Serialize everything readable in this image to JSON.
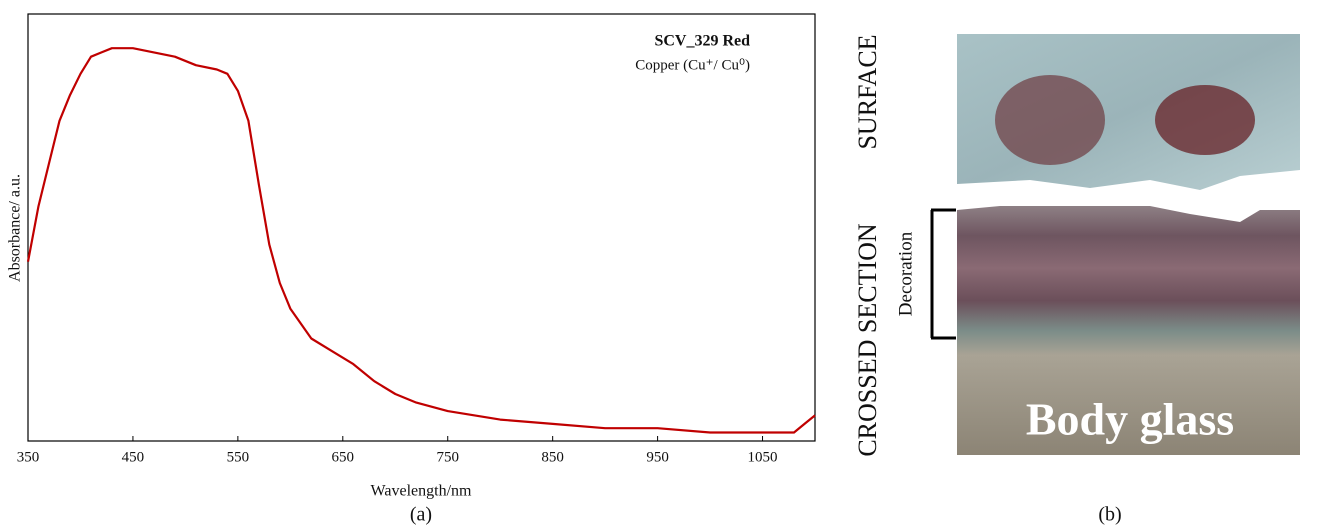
{
  "chart_data": {
    "type": "line",
    "panel_label": "(a)",
    "series_title": "SCV_329 Red",
    "series_subtitle": "Copper (Cu⁺/ Cu⁰)",
    "xlabel": "Wavelength/nm",
    "ylabel": "Absorbance/ a.u.",
    "x": [
      350,
      360,
      370,
      380,
      390,
      400,
      410,
      420,
      430,
      440,
      450,
      470,
      490,
      510,
      530,
      540,
      550,
      560,
      570,
      580,
      590,
      600,
      620,
      640,
      660,
      680,
      700,
      720,
      750,
      800,
      850,
      900,
      950,
      1000,
      1050,
      1080,
      1090,
      1100
    ],
    "series": [
      {
        "color": "#c00000",
        "values": [
          0.42,
          0.55,
          0.65,
          0.75,
          0.81,
          0.86,
          0.9,
          0.91,
          0.92,
          0.92,
          0.92,
          0.91,
          0.9,
          0.88,
          0.87,
          0.86,
          0.82,
          0.75,
          0.6,
          0.46,
          0.37,
          0.31,
          0.24,
          0.21,
          0.18,
          0.14,
          0.11,
          0.09,
          0.07,
          0.05,
          0.04,
          0.03,
          0.03,
          0.02,
          0.02,
          0.02,
          0.04,
          0.06
        ]
      }
    ],
    "xlim": [
      350,
      1100
    ],
    "xticks": [
      350,
      450,
      550,
      650,
      750,
      850,
      950,
      1050
    ],
    "ylim": [
      0,
      1
    ],
    "grid": false
  },
  "panel_b": {
    "panel_label": "(b)",
    "surface": "SURFACE",
    "cross_section": "CROSSED SECTION",
    "decoration": "Decoration",
    "body_glass": "Body glass"
  }
}
